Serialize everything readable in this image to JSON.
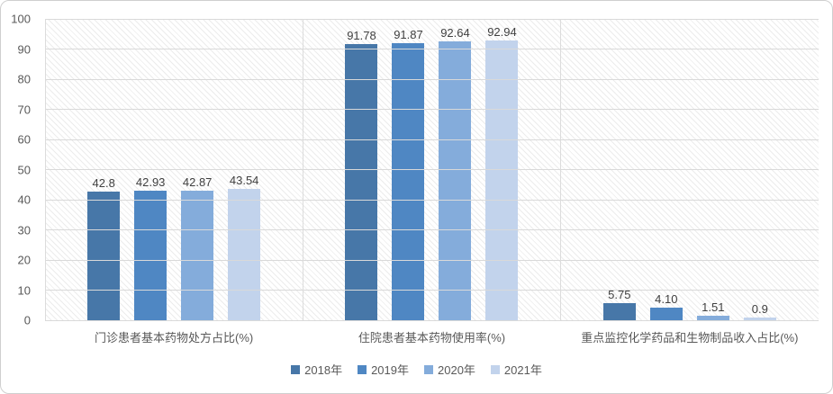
{
  "chart_data": {
    "type": "bar",
    "title": "",
    "xlabel": "",
    "ylabel": "",
    "categories": [
      "门诊患者基本药物处方占比(%)",
      "住院患者基本药物使用率(%)",
      "重点监控化学药品和生物制品收入占比(%)"
    ],
    "series": [
      {
        "name": "2018年",
        "color": "#4777A8",
        "values": [
          42.8,
          91.78,
          5.75
        ],
        "labels": [
          "42.8",
          "91.78",
          "5.75"
        ]
      },
      {
        "name": "2019年",
        "color": "#4F87C3",
        "values": [
          42.93,
          91.87,
          4.1
        ],
        "labels": [
          "42.93",
          "91.87",
          "4.10"
        ]
      },
      {
        "name": "2020年",
        "color": "#84ACDB",
        "values": [
          42.87,
          92.64,
          1.51
        ],
        "labels": [
          "42.87",
          "92.64",
          "1.51"
        ]
      },
      {
        "name": "2021年",
        "color": "#C2D3EC",
        "values": [
          43.54,
          92.94,
          0.9
        ],
        "labels": [
          "43.54",
          "92.94",
          "0.9"
        ]
      }
    ],
    "y_axis": {
      "min": 0,
      "max": 100,
      "step": 10,
      "tick_values": [
        0,
        10,
        20,
        30,
        40,
        50,
        60,
        70,
        80,
        90,
        100
      ],
      "tick_labels": [
        "0",
        "10",
        "20",
        "30",
        "40",
        "50",
        "60",
        "70",
        "80",
        "90",
        "100"
      ]
    },
    "grid": true,
    "category_separators": true,
    "plot_area_pattern": "diagonal-hatch",
    "legend_position": "bottom",
    "colors": {
      "gridline": "#d9d9d9",
      "axis_text": "#595959",
      "value_label_text": "#3f3f3f",
      "frame_border": "#cfcfcf"
    }
  }
}
